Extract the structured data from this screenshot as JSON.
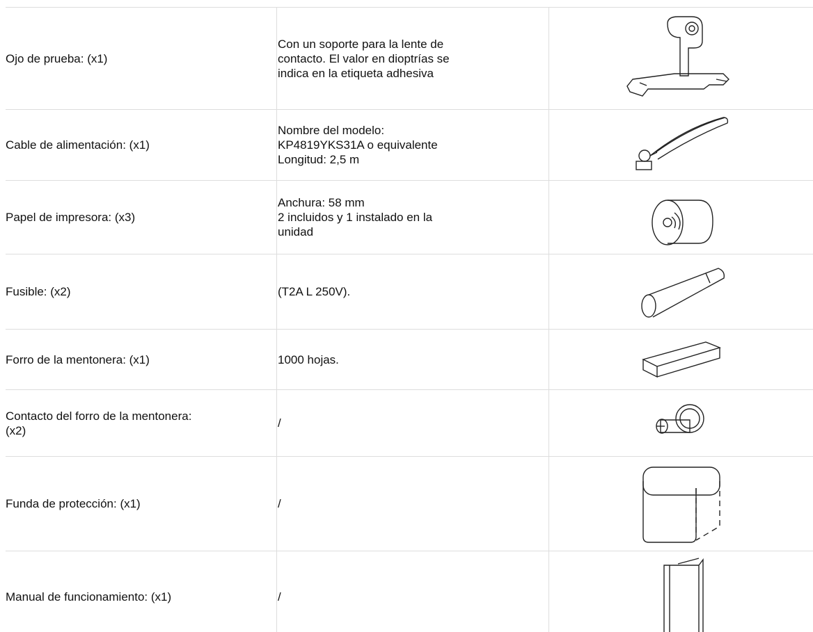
{
  "table": {
    "rows": [
      {
        "item": [
          "Ojo de prueba: (x1)"
        ],
        "description": [
          "Con un soporte para la lente de",
          "contacto. El valor en dioptrías se",
          "indica en la etiqueta adhesiva"
        ]
      },
      {
        "item": [
          "Cable de alimentación: (x1)"
        ],
        "description": [
          "Nombre del modelo:",
          "KP4819YKS31A o equivalente",
          "Longitud: 2,5 m"
        ]
      },
      {
        "item": [
          "Papel de impresora: (x3)"
        ],
        "description": [
          "Anchura: 58 mm",
          "2 incluidos y 1 instalado en la",
          "unidad"
        ]
      },
      {
        "item": [
          "Fusible: (x2)"
        ],
        "description": [
          "(T2A L 250V)."
        ]
      },
      {
        "item": [
          "Forro de la mentonera: (x1)"
        ],
        "description": [
          "1000 hojas."
        ]
      },
      {
        "item": [
          "Contacto del forro de la mentonera:",
          "(x2)"
        ],
        "description": [
          "/"
        ]
      },
      {
        "item": [
          "Funda de protección: (x1)"
        ],
        "description": [
          "/"
        ]
      },
      {
        "item": [
          "Manual de funcionamiento: (x1)"
        ],
        "description": [
          "/"
        ]
      }
    ]
  }
}
